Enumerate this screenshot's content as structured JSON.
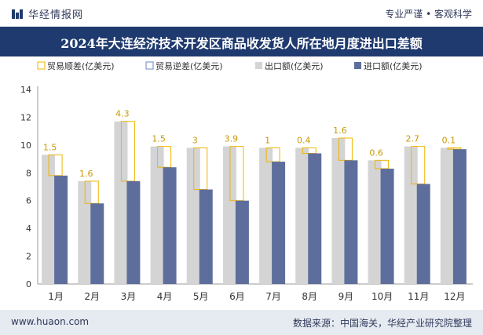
{
  "header": {
    "brand": "华经情报网",
    "tagline": "专业严谨 • 客观科学"
  },
  "title": "2024年大连经济技术开发区商品收发货人所在地月度进出口差额",
  "footer": {
    "website": "www.huaon.com",
    "source": "数据来源：中国海关，华经产业研究院整理"
  },
  "colors": {
    "export": "#d4d4d4",
    "import": "#5e6e9c",
    "surplus_outline": "#f0b400",
    "deficit_outline": "#6a86c6",
    "title_band": "#1f3a6e",
    "label": "#c79a00"
  },
  "chart_data": {
    "type": "bar",
    "title": "2024年大连经济技术开发区商品收发货人所在地月度进出口差额",
    "categories": [
      "1月",
      "2月",
      "3月",
      "4月",
      "5月",
      "6月",
      "7月",
      "8月",
      "9月",
      "10月",
      "11月",
      "12月"
    ],
    "series": [
      {
        "name": "贸易顺差(亿美元)",
        "values": [
          1.5,
          1.6,
          4.3,
          1.5,
          3,
          3.9,
          1,
          0.4,
          1.6,
          0.6,
          2.7,
          0.1
        ]
      },
      {
        "name": "贸易逆差(亿美元)",
        "values": [
          0,
          0,
          0,
          0,
          0,
          0,
          0,
          0,
          0,
          0,
          0,
          0
        ]
      },
      {
        "name": "出口额(亿美元)",
        "values": [
          9.3,
          7.4,
          11.7,
          9.9,
          9.8,
          9.9,
          9.8,
          9.8,
          10.5,
          8.9,
          9.9,
          9.8
        ]
      },
      {
        "name": "进口额(亿美元)",
        "values": [
          7.8,
          5.8,
          7.4,
          8.4,
          6.8,
          6.0,
          8.8,
          9.4,
          8.9,
          8.3,
          7.2,
          9.7
        ]
      }
    ],
    "labels": [
      "1.5",
      "1.6",
      "4.3",
      "1.5",
      "3",
      "3.9",
      "1",
      "0.4",
      "1.6",
      "0.6",
      "2.7",
      "0.1"
    ],
    "y_ticks": [
      "0",
      "2",
      "4",
      "6",
      "8",
      "10",
      "12",
      "14"
    ],
    "ylim": [
      0,
      14
    ],
    "legend_position": "top-left"
  }
}
